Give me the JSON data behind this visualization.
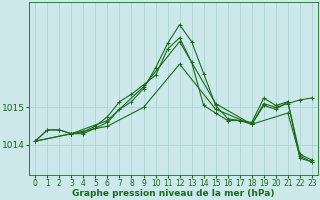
{
  "background_color": "#cce8ea",
  "line_color": "#1a6b1a",
  "grid_color": "#a8cdd0",
  "xlabel": "Graphe pression niveau de la mer (hPa)",
  "xlabel_fontsize": 6.5,
  "ytick_fontsize": 6.5,
  "xtick_fontsize": 5.5,
  "xlim": [
    -0.5,
    23.5
  ],
  "ylim": [
    1013.2,
    1017.8
  ],
  "yticks": [
    1014,
    1015
  ],
  "xticks": [
    0,
    1,
    2,
    3,
    4,
    5,
    6,
    7,
    8,
    9,
    10,
    11,
    12,
    13,
    14,
    15,
    16,
    17,
    18,
    19,
    20,
    21,
    22,
    23
  ],
  "series": [
    {
      "x": [
        0,
        1,
        2,
        3,
        4,
        5,
        6,
        7,
        8,
        9,
        10,
        11,
        12,
        13,
        14,
        15,
        16,
        17,
        18,
        19,
        20,
        21,
        22,
        23
      ],
      "y": [
        1014.1,
        1014.4,
        1014.4,
        1014.3,
        1014.35,
        1014.5,
        1014.75,
        1015.15,
        1015.35,
        1015.6,
        1015.85,
        1016.55,
        1016.85,
        1016.2,
        1015.05,
        1014.85,
        1014.65,
        1014.65,
        1014.6,
        1015.25,
        1015.05,
        1015.15,
        1013.75,
        1013.6
      ]
    },
    {
      "x": [
        0,
        1,
        2,
        3,
        4,
        5,
        6,
        7,
        8,
        9,
        10,
        11,
        12,
        13,
        14,
        15,
        16,
        17,
        18,
        19,
        20,
        21,
        22,
        23
      ],
      "y": [
        1014.1,
        1014.4,
        1014.4,
        1014.3,
        1014.3,
        1014.45,
        1014.6,
        1014.95,
        1015.15,
        1015.5,
        1016.05,
        1016.7,
        1017.2,
        1016.75,
        1015.9,
        1015.05,
        1014.7,
        1014.65,
        1014.55,
        1015.05,
        1014.95,
        1015.15,
        1013.65,
        1013.55
      ]
    },
    {
      "x": [
        0,
        3,
        6,
        9,
        12,
        15,
        18,
        19,
        20,
        21,
        22,
        23
      ],
      "y": [
        1014.1,
        1014.3,
        1014.65,
        1015.55,
        1016.75,
        1015.1,
        1014.55,
        1015.1,
        1015.0,
        1015.1,
        1015.2,
        1015.25
      ]
    },
    {
      "x": [
        0,
        3,
        6,
        9,
        12,
        15,
        18,
        21,
        22,
        23
      ],
      "y": [
        1014.1,
        1014.3,
        1014.5,
        1015.0,
        1016.15,
        1014.95,
        1014.55,
        1014.85,
        1013.7,
        1013.55
      ]
    }
  ]
}
